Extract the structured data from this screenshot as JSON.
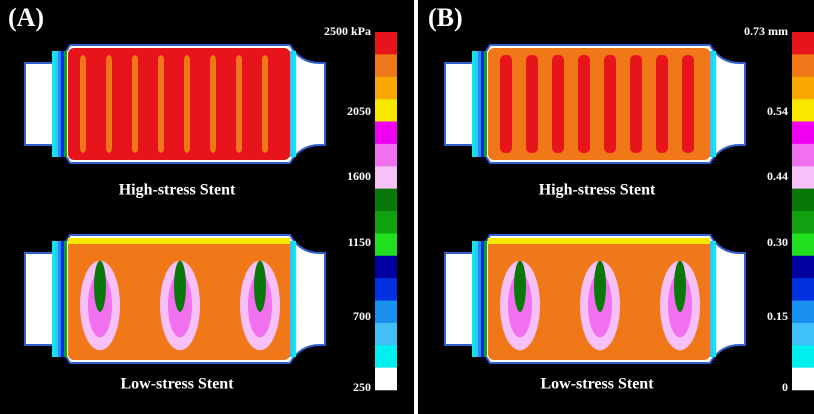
{
  "panels": [
    {
      "label": "(A)",
      "unit_label": "2500 kPa",
      "scale_labels": [
        "2050",
        "1600",
        "1150",
        "700",
        "250"
      ],
      "captions": [
        "High-stress Stent",
        "Low-stress Stent"
      ]
    },
    {
      "label": "(B)",
      "unit_label": "0.73 mm",
      "scale_labels": [
        "0.54",
        "0.44",
        "0.30",
        "0.15",
        "0"
      ],
      "captions": [
        "High-stress Stent",
        "Low-stress Stent"
      ]
    }
  ]
}
